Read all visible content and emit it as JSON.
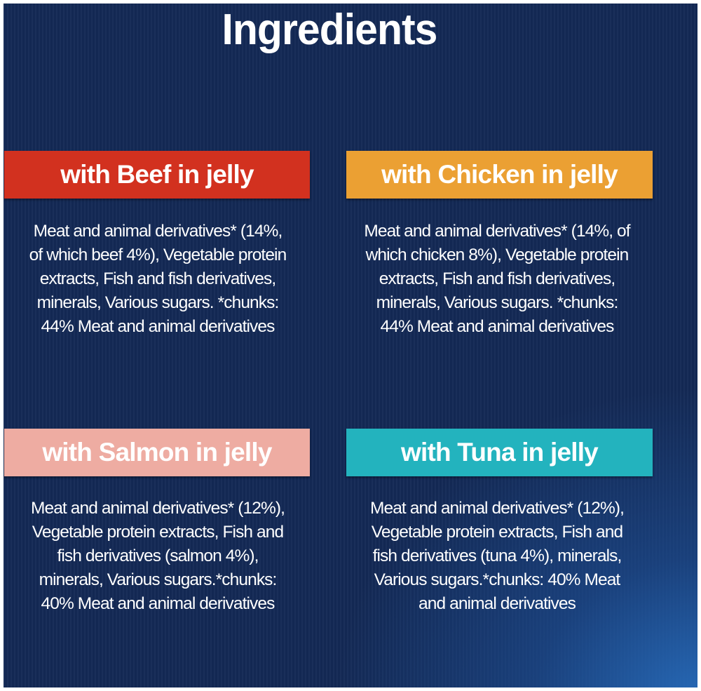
{
  "title": "Ingredients",
  "colors": {
    "background": "#142a56",
    "beef": "#d2311f",
    "chicken": "#eba033",
    "salmon": "#eeaca2",
    "tuna": "#23b3be"
  },
  "variants": [
    {
      "label": "with Beef in jelly",
      "lines": [
        "Meat and animal derivatives* (14%,",
        "of which beef 4%), Vegetable protein",
        "extracts, Fish and fish derivatives,",
        "minerals, Various sugars. *chunks:",
        "44% Meat and animal derivatives"
      ]
    },
    {
      "label": "with Chicken in jelly",
      "lines": [
        "Meat and animal derivatives* (14%, of",
        "which chicken 8%), Vegetable protein",
        "extracts, Fish and fish derivatives,",
        "minerals, Various sugars. *chunks:",
        "44% Meat and animal derivatives"
      ]
    },
    {
      "label": "with Salmon in jelly",
      "lines": [
        "Meat and animal derivatives* (12%),",
        "Vegetable protein extracts, Fish and",
        "fish derivatives (salmon 4%),",
        "minerals, Various sugars.*chunks:",
        "40% Meat and animal derivatives"
      ]
    },
    {
      "label": "with Tuna in jelly",
      "lines": [
        "Meat and animal derivatives* (12%),",
        "Vegetable protein extracts, Fish and",
        "fish derivatives (tuna 4%), minerals,",
        "Various sugars.*chunks: 40% Meat",
        "and animal derivatives"
      ]
    }
  ]
}
